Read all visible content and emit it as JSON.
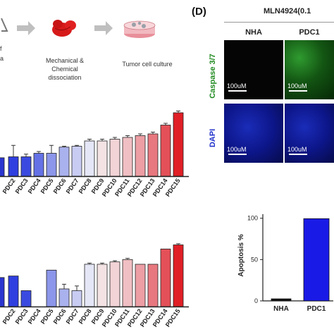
{
  "workflow": {
    "step1_label_line1": "Mechanical &",
    "step1_label_line2": "Chemical dissociation",
    "step2_label": "Tumor cell culture",
    "left_fragment_1": "f",
    "left_fragment_2": "a"
  },
  "panel_d": {
    "label": "(D)",
    "condition_title": "MLN4924(0.1",
    "col_headers": [
      "NHA",
      "PDC1"
    ],
    "row_labels": [
      "Caspase 3/7",
      "DAPI"
    ],
    "scale_label": "100uM",
    "colors": {
      "caspase": "#1f8a1f",
      "dapi": "#2233cc"
    }
  },
  "chart_data": [
    {
      "type": "bar",
      "categories": [
        "PDC2",
        "PDC3",
        "PDC4",
        "PDC5",
        "PDC6",
        "PDC7",
        "PDC8",
        "PDC9",
        "PDC10",
        "PDC11",
        "PDC12",
        "PDC13",
        "PDC14",
        "PDC15"
      ],
      "values": [
        0.22,
        0.22,
        0.26,
        0.26,
        0.33,
        0.34,
        0.4,
        0.4,
        0.42,
        0.44,
        0.46,
        0.48,
        0.58,
        0.72
      ],
      "errors": [
        0.13,
        0.03,
        0.02,
        0.09,
        0.01,
        0.01,
        0.02,
        0.02,
        0.02,
        0.02,
        0.02,
        0.02,
        0.02,
        0.02
      ],
      "ylim": [
        0,
        0.8
      ],
      "colors": [
        "#2f3fe0",
        "#3a4ae0",
        "#6472e6",
        "#8c96ea",
        "#aab2ee",
        "#c8ccf3",
        "#e5e6f6",
        "#f3e3e5",
        "#f2d3d6",
        "#f0bfc3",
        "#ec9ea4",
        "#e8787f",
        "#e45058",
        "#e01f26"
      ]
    },
    {
      "type": "bar",
      "categories": [
        "PDC2",
        "PDC3",
        "PDC4",
        "PDC5",
        "PDC6",
        "PDC7",
        "PDC8",
        "PDC9",
        "PDC10",
        "PDC11",
        "PDC12",
        "PDC13",
        "PDC14",
        "PDC15"
      ],
      "values": [
        0.52,
        0.27,
        0.0,
        0.62,
        0.3,
        0.27,
        0.72,
        0.72,
        0.76,
        0.8,
        0.72,
        0.72,
        0.98,
        1.05
      ],
      "errors": [
        0.0,
        0.0,
        0.0,
        0.0,
        0.08,
        0.08,
        0.02,
        0.02,
        0.02,
        0.02,
        0.0,
        0.0,
        0.0,
        0.02
      ],
      "ylim": [
        0,
        1.2
      ],
      "colors": [
        "#2f3fe0",
        "#3a4ae0",
        "#6472e6",
        "#8c96ea",
        "#aab2ee",
        "#c8ccf3",
        "#e5e6f6",
        "#f3e3e5",
        "#f2d3d6",
        "#f0bfc3",
        "#ec9ea4",
        "#e8787f",
        "#e45058",
        "#e01f26"
      ]
    },
    {
      "type": "bar",
      "categories": [
        "NHA",
        "PDC1"
      ],
      "values": [
        2.5,
        99.5
      ],
      "ylabel": "Apoptosis %",
      "yticks": [
        0,
        50,
        100
      ],
      "ylim": [
        0,
        110
      ],
      "colors": [
        "#111111",
        "#1a1ae6"
      ]
    }
  ]
}
